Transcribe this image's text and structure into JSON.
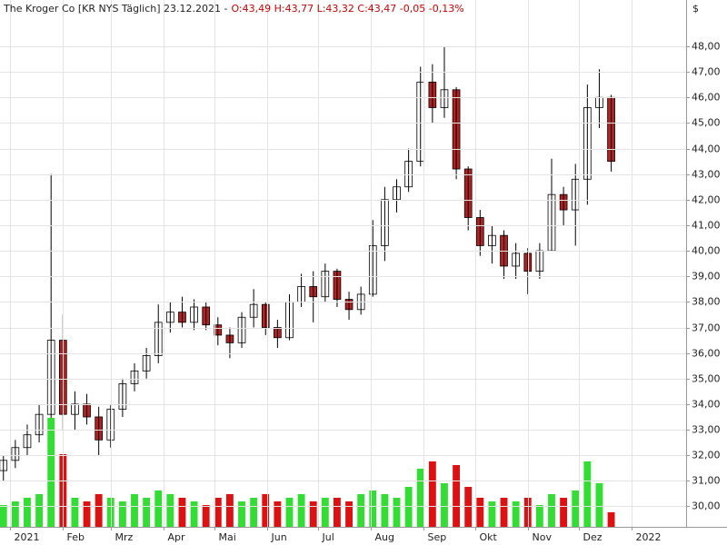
{
  "chart_data": {
    "type": "candlestick",
    "title": "The Kroger Co [KR NYS  Täglich] 23.12.2021 -",
    "quote": "O:43,49 H:43,77 L:43,32 C:43,47 -0,05 -0,13%",
    "currency": "$",
    "x": [
      -4,
      3,
      10,
      17,
      24,
      31,
      38,
      45,
      52,
      59,
      66,
      73,
      80,
      87,
      94,
      101,
      108,
      115,
      122,
      129,
      136,
      143,
      150,
      157,
      164,
      171,
      178,
      185,
      192,
      199,
      206,
      213,
      220,
      227,
      234,
      241,
      248,
      255,
      262,
      269,
      276,
      283,
      290,
      297,
      304,
      311,
      318,
      325,
      332,
      339,
      346,
      353
    ],
    "open": [
      31.4,
      31.8,
      32.3,
      32.8,
      33.6,
      36.5,
      33.6,
      34.0,
      33.5,
      32.6,
      33.8,
      34.8,
      35.3,
      35.9,
      37.2,
      37.6,
      37.2,
      37.8,
      37.1,
      36.7,
      36.4,
      37.4,
      37.9,
      37.0,
      36.6,
      38.0,
      38.6,
      38.2,
      39.2,
      38.1,
      37.7,
      38.3,
      40.2,
      42.0,
      42.5,
      43.5,
      46.6,
      45.6,
      46.3,
      43.2,
      41.3,
      40.2,
      40.6,
      39.4,
      39.9,
      39.2,
      40.0,
      42.2,
      41.6,
      42.8,
      45.6,
      46.0
    ],
    "high": [
      32.0,
      32.6,
      33.2,
      34.0,
      43.0,
      37.5,
      34.5,
      34.4,
      33.9,
      34.0,
      35.0,
      35.6,
      36.2,
      37.9,
      38.0,
      38.2,
      38.1,
      38.0,
      37.4,
      37.0,
      37.6,
      38.5,
      38.0,
      37.3,
      38.3,
      39.1,
      39.2,
      39.5,
      39.3,
      38.4,
      38.6,
      41.2,
      42.5,
      42.8,
      44.0,
      47.2,
      47.3,
      48.0,
      46.4,
      43.3,
      41.6,
      41.0,
      40.8,
      40.3,
      40.1,
      40.3,
      43.6,
      42.5,
      43.4,
      46.5,
      47.1,
      46.1
    ],
    "low": [
      31.0,
      31.5,
      32.0,
      32.5,
      33.0,
      33.0,
      33.0,
      33.2,
      32.0,
      32.3,
      33.5,
      34.5,
      35.0,
      35.6,
      36.8,
      37.0,
      36.9,
      36.9,
      36.3,
      35.8,
      36.2,
      37.0,
      36.7,
      36.2,
      36.5,
      37.8,
      37.2,
      38.0,
      37.8,
      37.3,
      37.5,
      38.2,
      39.6,
      41.5,
      42.3,
      43.3,
      45.0,
      45.2,
      42.8,
      40.8,
      39.8,
      39.5,
      38.9,
      38.9,
      38.3,
      38.9,
      40.0,
      41.0,
      40.2,
      41.8,
      44.8,
      43.1
    ],
    "close": [
      31.8,
      32.3,
      32.8,
      33.6,
      36.5,
      33.6,
      34.0,
      33.5,
      32.6,
      33.8,
      34.8,
      35.3,
      35.9,
      37.2,
      37.6,
      37.2,
      37.8,
      37.1,
      36.7,
      36.4,
      37.4,
      37.9,
      37.0,
      36.6,
      38.0,
      38.6,
      38.2,
      39.2,
      38.1,
      37.7,
      38.3,
      40.2,
      42.0,
      42.5,
      43.5,
      46.6,
      45.6,
      46.3,
      43.2,
      41.3,
      40.2,
      40.6,
      39.4,
      39.9,
      39.2,
      40.0,
      42.2,
      41.6,
      42.8,
      45.6,
      46.0,
      43.5
    ],
    "volume": [
      6,
      7,
      8,
      9,
      30,
      20,
      8,
      7,
      9,
      8,
      7,
      9,
      8,
      10,
      9,
      8,
      7,
      6,
      8,
      9,
      7,
      8,
      9,
      7,
      8,
      9,
      7,
      8,
      8,
      7,
      9,
      10,
      9,
      8,
      11,
      16,
      18,
      12,
      17,
      11,
      8,
      7,
      8,
      7,
      8,
      6,
      9,
      8,
      10,
      18,
      12,
      4
    ],
    "xlim": [
      -6,
      397
    ],
    "xticks": [
      {
        "value": 0,
        "label": "2021"
      },
      {
        "value": 31,
        "label": "Feb"
      },
      {
        "value": 59,
        "label": "Mrz"
      },
      {
        "value": 90,
        "label": "Apr"
      },
      {
        "value": 120,
        "label": "Mai"
      },
      {
        "value": 151,
        "label": "Jun"
      },
      {
        "value": 181,
        "label": "Jul"
      },
      {
        "value": 212,
        "label": "Aug"
      },
      {
        "value": 243,
        "label": "Sep"
      },
      {
        "value": 273,
        "label": "Okt"
      },
      {
        "value": 304,
        "label": "Nov"
      },
      {
        "value": 334,
        "label": "Dez"
      },
      {
        "value": 365,
        "label": "2022"
      }
    ],
    "ylim": [
      29.2,
      49.1
    ],
    "yticks": [
      {
        "value": 30,
        "label": "30,00"
      },
      {
        "value": 31,
        "label": "31,00"
      },
      {
        "value": 32,
        "label": "32,00"
      },
      {
        "value": 33,
        "label": "33,00"
      },
      {
        "value": 34,
        "label": "34,00"
      },
      {
        "value": 35,
        "label": "35,00"
      },
      {
        "value": 36,
        "label": "36,00"
      },
      {
        "value": 37,
        "label": "37,00"
      },
      {
        "value": 38,
        "label": "38,00"
      },
      {
        "value": 39,
        "label": "39,00"
      },
      {
        "value": 40,
        "label": "40,00"
      },
      {
        "value": 41,
        "label": "41,00"
      },
      {
        "value": 42,
        "label": "42,00"
      },
      {
        "value": 43,
        "label": "43,00"
      },
      {
        "value": 44,
        "label": "44,00"
      },
      {
        "value": 45,
        "label": "45,00"
      },
      {
        "value": 46,
        "label": "46,00"
      },
      {
        "value": 47,
        "label": "47,00"
      },
      {
        "value": 48,
        "label": "48,00"
      }
    ],
    "grid": true,
    "up_color": "#ffffff",
    "down_color": "#b22222",
    "volume_up_color": "#33dd33",
    "volume_down_color": "#dd1111"
  }
}
